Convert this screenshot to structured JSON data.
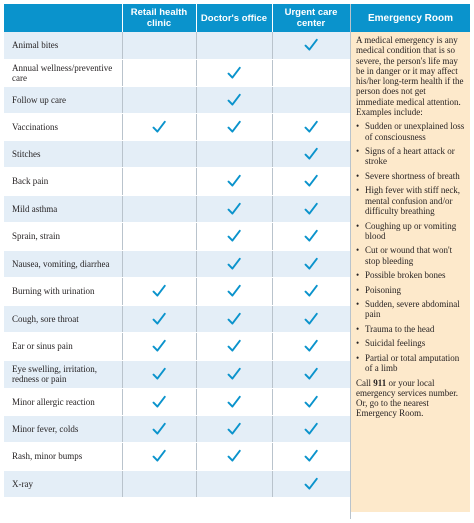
{
  "headers": {
    "retail": "Retail health clinic",
    "doctor": "Doctor's office",
    "urgent": "Urgent care center",
    "emergency": "Emergency Room"
  },
  "rows": [
    {
      "label": "Animal bites",
      "retail": false,
      "doctor": false,
      "urgent": true
    },
    {
      "label": "Annual wellness/preventive care",
      "retail": false,
      "doctor": true,
      "urgent": false
    },
    {
      "label": "Follow up care",
      "retail": false,
      "doctor": true,
      "urgent": false
    },
    {
      "label": "Vaccinations",
      "retail": true,
      "doctor": true,
      "urgent": true
    },
    {
      "label": "Stitches",
      "retail": false,
      "doctor": false,
      "urgent": true
    },
    {
      "label": "Back pain",
      "retail": false,
      "doctor": true,
      "urgent": true
    },
    {
      "label": "Mild asthma",
      "retail": false,
      "doctor": true,
      "urgent": true
    },
    {
      "label": "Sprain, strain",
      "retail": false,
      "doctor": true,
      "urgent": true
    },
    {
      "label": "Nausea, vomiting, diarrhea",
      "retail": false,
      "doctor": true,
      "urgent": true
    },
    {
      "label": "Burning with urination",
      "retail": true,
      "doctor": true,
      "urgent": true
    },
    {
      "label": "Cough, sore throat",
      "retail": true,
      "doctor": true,
      "urgent": true
    },
    {
      "label": "Ear or sinus pain",
      "retail": true,
      "doctor": true,
      "urgent": true
    },
    {
      "label": "Eye swelling, irritation, redness or pain",
      "retail": true,
      "doctor": true,
      "urgent": true
    },
    {
      "label": "Minor allergic reaction",
      "retail": true,
      "doctor": true,
      "urgent": true
    },
    {
      "label": "Minor fever, colds",
      "retail": true,
      "doctor": true,
      "urgent": true
    },
    {
      "label": "Rash, minor bumps",
      "retail": true,
      "doctor": true,
      "urgent": true
    },
    {
      "label": "X-ray",
      "retail": false,
      "doctor": false,
      "urgent": true
    }
  ],
  "emergency": {
    "intro": "A medical emergency is any medical condition that is so severe, the person's life may be in danger or it may affect his/her long-term health if the person does not get immediate medical attention. Examples include:",
    "bullet": "•",
    "items": [
      "Sudden or unexplained loss of consciousness",
      "Signs of a heart attack or stroke",
      "Severe shortness of breath",
      "High fever with stiff neck, mental confusion and/or difficulty breathing",
      "Coughing up or vomiting blood",
      "Cut or wound that won't stop bleeding",
      "Possible broken bones",
      "Poisoning",
      "Sudden, severe abdominal pain",
      "Trauma to the head",
      "Suicidal feelings",
      "Partial or total amputation of a limb"
    ],
    "footer_pre": "Call ",
    "footer_number": "911",
    "footer_post": " or your local emergency services number. Or, go to the nearest Emergency Room."
  },
  "colors": {
    "header_blue": "#0a93cc",
    "row_stripe": "#e4eef7",
    "er_background": "#fde9cb",
    "check": "#0a93cc"
  },
  "icons": {
    "check": "checkmark-icon"
  }
}
